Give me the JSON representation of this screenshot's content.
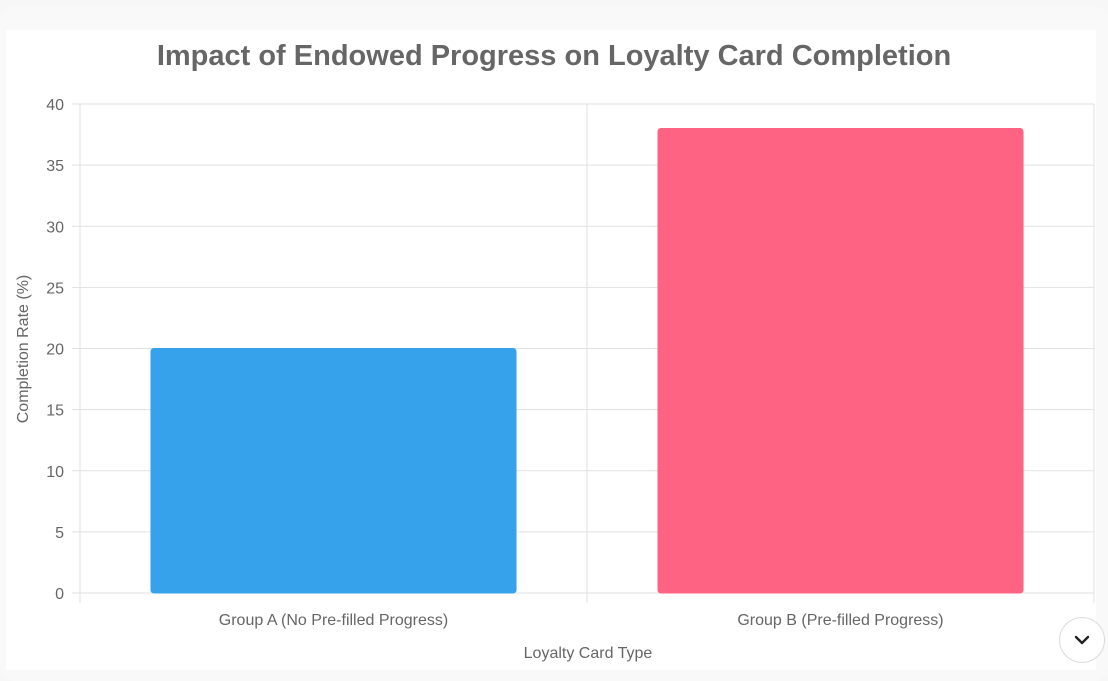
{
  "chart_data": {
    "type": "bar",
    "title": "Impact of Endowed Progress on Loyalty Card Completion",
    "categories": [
      "Group A (No Pre-filled Progress)",
      "Group B (Pre-filled Progress)"
    ],
    "values": [
      20,
      38
    ],
    "colors": [
      "#36a2eb",
      "#ff6384"
    ],
    "xlabel": "Loyalty Card Type",
    "ylabel": "Completion Rate (%)",
    "ylim": [
      0,
      40
    ],
    "yticks": [
      "0",
      "5",
      "10",
      "15",
      "20",
      "25",
      "30",
      "35",
      "40"
    ],
    "grid": true
  },
  "controls": {
    "scroll_icon": "chevron-down-icon"
  }
}
